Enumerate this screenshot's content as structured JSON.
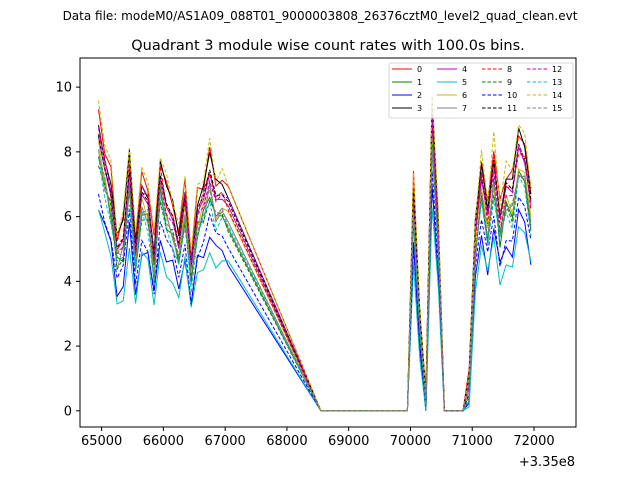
{
  "header": {
    "data_file": "Data file: modeM0/AS1A09_088T01_9000003808_26376cztM0_level2_quad_clean.evt"
  },
  "chart_data": {
    "type": "line",
    "title": "Quadrant 3 module wise count rates with 100.0s bins.",
    "xlabel": "",
    "ylabel": "",
    "x_offset_label": "+3.35e8",
    "xlim": [
      64650,
      72680
    ],
    "ylim": [
      -0.5,
      10.9
    ],
    "x_ticks": [
      {
        "value": 65000,
        "label": "65000"
      },
      {
        "value": 66000,
        "label": "66000"
      },
      {
        "value": 67000,
        "label": "67000"
      },
      {
        "value": 68000,
        "label": "68000"
      },
      {
        "value": 69000,
        "label": "69000"
      },
      {
        "value": 70000,
        "label": "70000"
      },
      {
        "value": 71000,
        "label": "71000"
      },
      {
        "value": 72000,
        "label": "72000"
      }
    ],
    "y_ticks": [
      {
        "value": 0,
        "label": "0"
      },
      {
        "value": 2,
        "label": "2"
      },
      {
        "value": 4,
        "label": "4"
      },
      {
        "value": 6,
        "label": "6"
      },
      {
        "value": 8,
        "label": "8"
      },
      {
        "value": 10,
        "label": "10"
      }
    ],
    "x_start": 64950,
    "x_step": 100,
    "zero_from": 68550,
    "zero_to": 69950,
    "seg1": [
      8.4,
      7.4,
      6.6,
      4.9,
      5.2,
      7.3,
      4.7,
      6.6,
      6.3,
      4.6,
      7.1,
      6.2,
      5.8,
      4.9,
      6.4,
      4.3,
      6.0,
      6.4,
      7.2,
      6.4,
      6.4,
      6.2
    ],
    "seg2": [
      6.5,
      2.8,
      0.1,
      8.8,
      5.2
    ],
    "seg3": [
      0.7,
      5.2,
      6.9,
      5.8,
      7.4,
      5.7,
      6.7,
      6.5,
      7.9,
      7.4,
      6.2
    ],
    "series": [
      {
        "name": "0",
        "color": "#ff0000",
        "dash": "solid",
        "scale": 1.06,
        "offset": 0.3
      },
      {
        "name": "1",
        "color": "#008000",
        "dash": "solid",
        "scale": 0.98,
        "offset": -0.3
      },
      {
        "name": "2",
        "color": "#0000ff",
        "dash": "solid",
        "scale": 0.78,
        "offset": -0.1
      },
      {
        "name": "3",
        "color": "#000000",
        "dash": "solid",
        "scale": 1.05,
        "offset": 0.2
      },
      {
        "name": "4",
        "color": "#bf00bf",
        "dash": "solid",
        "scale": 1.0,
        "offset": 0.05
      },
      {
        "name": "5",
        "color": "#00bfbf",
        "dash": "solid",
        "scale": 0.74,
        "offset": -0.2
      },
      {
        "name": "6",
        "color": "#bfbf00",
        "dash": "solid",
        "scale": 0.97,
        "offset": -0.05
      },
      {
        "name": "7",
        "color": "#808080",
        "dash": "solid",
        "scale": 0.96,
        "offset": -0.1
      },
      {
        "name": "8",
        "color": "#ff0000",
        "dash": "dashed",
        "scale": 1.02,
        "offset": 0.1
      },
      {
        "name": "9",
        "color": "#008000",
        "dash": "dashed",
        "scale": 0.93,
        "offset": 0.0
      },
      {
        "name": "10",
        "color": "#0000ff",
        "dash": "dashed",
        "scale": 0.82,
        "offset": 0.0
      },
      {
        "name": "11",
        "color": "#000000",
        "dash": "dashed",
        "scale": 1.0,
        "offset": 0.1
      },
      {
        "name": "12",
        "color": "#bf00bf",
        "dash": "dashed",
        "scale": 1.01,
        "offset": 0.05
      },
      {
        "name": "13",
        "color": "#00bfbf",
        "dash": "dashed",
        "scale": 0.92,
        "offset": -0.1
      },
      {
        "name": "14",
        "color": "#bfbf00",
        "dash": "dashed",
        "scale": 1.1,
        "offset": 0.25
      },
      {
        "name": "15",
        "color": "#808080",
        "dash": "dashed",
        "scale": 0.95,
        "offset": 0.0
      }
    ]
  }
}
